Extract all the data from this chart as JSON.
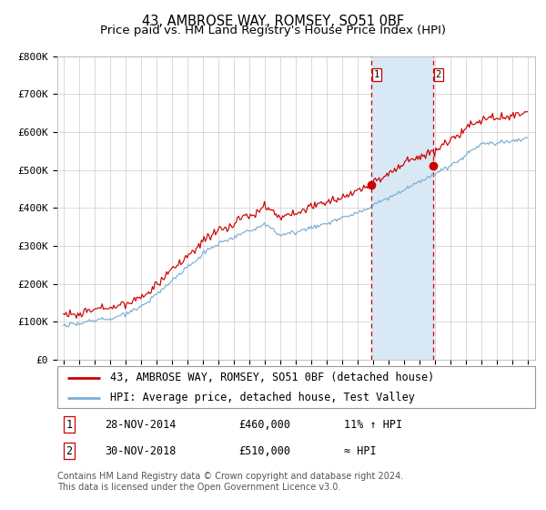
{
  "title": "43, AMBROSE WAY, ROMSEY, SO51 0BF",
  "subtitle": "Price paid vs. HM Land Registry's House Price Index (HPI)",
  "ylim": [
    0,
    800000
  ],
  "yticks": [
    0,
    100000,
    200000,
    300000,
    400000,
    500000,
    600000,
    700000,
    800000
  ],
  "ytick_labels": [
    "£0",
    "£100K",
    "£200K",
    "£300K",
    "£400K",
    "£500K",
    "£600K",
    "£700K",
    "£800K"
  ],
  "year_start": 1995,
  "year_end": 2025,
  "hpi_color": "#7bafd4",
  "price_color": "#cc0000",
  "marker_color": "#cc0000",
  "shade_color": "#d8e8f4",
  "dashed_line_color": "#cc0000",
  "sale1_year": 2014.917,
  "sale1_price": 460000,
  "sale2_year": 2018.917,
  "sale2_price": 510000,
  "legend_label1": "43, AMBROSE WAY, ROMSEY, SO51 0BF (detached house)",
  "legend_label2": "HPI: Average price, detached house, Test Valley",
  "table_row1": [
    "1",
    "28-NOV-2014",
    "£460,000",
    "11% ↑ HPI"
  ],
  "table_row2": [
    "2",
    "30-NOV-2018",
    "£510,000",
    "≈ HPI"
  ],
  "footnote": "Contains HM Land Registry data © Crown copyright and database right 2024.\nThis data is licensed under the Open Government Licence v3.0.",
  "background_color": "#ffffff",
  "grid_color": "#cccccc",
  "title_fontsize": 10.5,
  "subtitle_fontsize": 9.5,
  "tick_fontsize": 8,
  "legend_fontsize": 8.5,
  "footnote_fontsize": 7
}
